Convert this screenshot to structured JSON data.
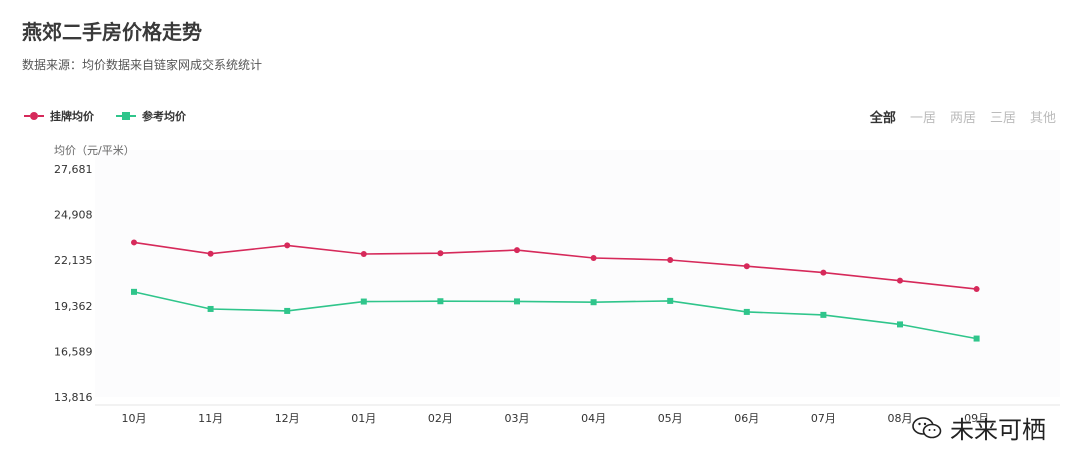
{
  "header": {
    "title": "燕郊二手房价格走势",
    "subtitle": "数据来源：均价数据来自链家网成交系统统计"
  },
  "legend": [
    {
      "label": "挂牌均价",
      "color": "#d6295a",
      "marker": "circle"
    },
    {
      "label": "参考均价",
      "color": "#2fc58b",
      "marker": "square"
    }
  ],
  "tabs": [
    {
      "label": "全部",
      "active": true
    },
    {
      "label": "一居",
      "active": false
    },
    {
      "label": "两居",
      "active": false
    },
    {
      "label": "三居",
      "active": false
    },
    {
      "label": "其他",
      "active": false
    }
  ],
  "watermark": {
    "text": "未来可栖",
    "icon": "wechat-icon"
  },
  "chart_data": {
    "type": "line",
    "title": "",
    "ylabel": "均价（元/平米）",
    "xlabel": "",
    "categories": [
      "10月",
      "11月",
      "12月",
      "01月",
      "02月",
      "03月",
      "04月",
      "05月",
      "06月",
      "07月",
      "08月",
      "09月"
    ],
    "y_ticks": [
      "27,681",
      "24,908",
      "22,135",
      "19,362",
      "16,589",
      "13,816"
    ],
    "ylim": [
      13816,
      27681
    ],
    "grid": false,
    "legend_position": "top-left",
    "series": [
      {
        "name": "挂牌均价",
        "color": "#d6295a",
        "marker": "circle",
        "values": [
          23215,
          22530,
          23035,
          22510,
          22560,
          22750,
          22270,
          22150,
          21770,
          21380,
          20890,
          20380
        ]
      },
      {
        "name": "参考均价",
        "color": "#2fc58b",
        "marker": "square",
        "values": [
          20210,
          19170,
          19050,
          19620,
          19640,
          19630,
          19580,
          19660,
          18990,
          18810,
          18230,
          17370
        ]
      }
    ]
  }
}
